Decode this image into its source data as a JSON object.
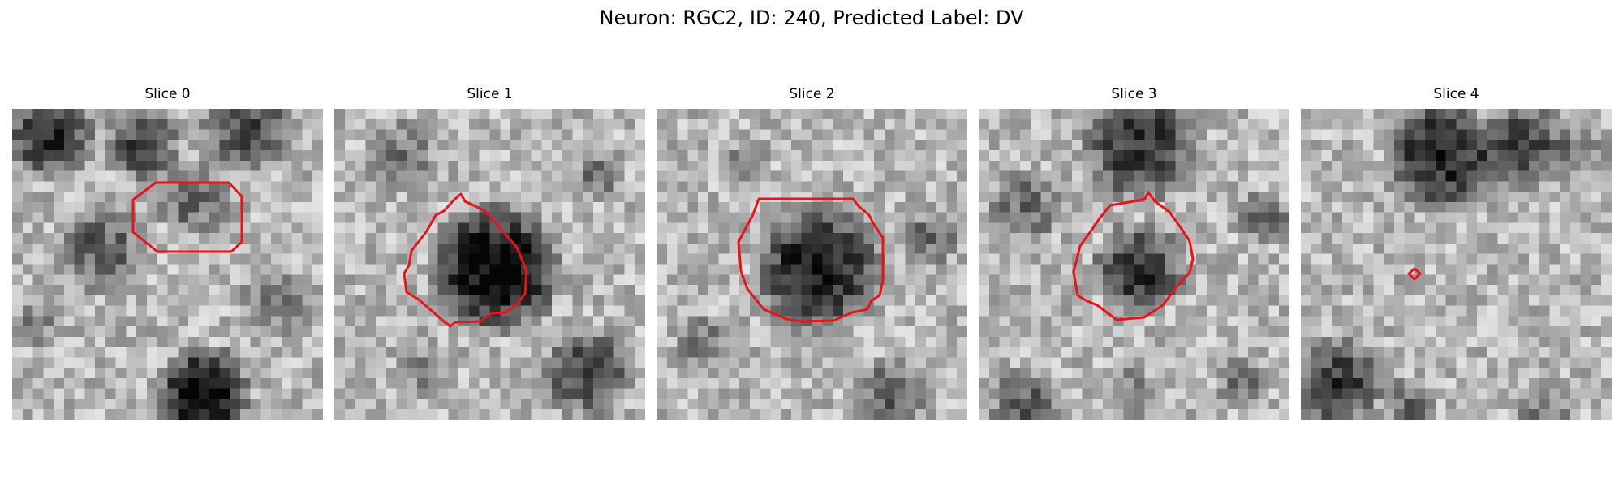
{
  "figure": {
    "title": "Neuron: RGC2, ID: 240, Predicted Label: DV"
  },
  "panels": [
    {
      "title": "Slice 0"
    },
    {
      "title": "Slice 1"
    },
    {
      "title": "Slice 2"
    },
    {
      "title": "Slice 3"
    },
    {
      "title": "Slice 4"
    }
  ],
  "colors": {
    "contour": "#e8141b",
    "background": "#ffffff"
  },
  "colormap": "gray"
}
